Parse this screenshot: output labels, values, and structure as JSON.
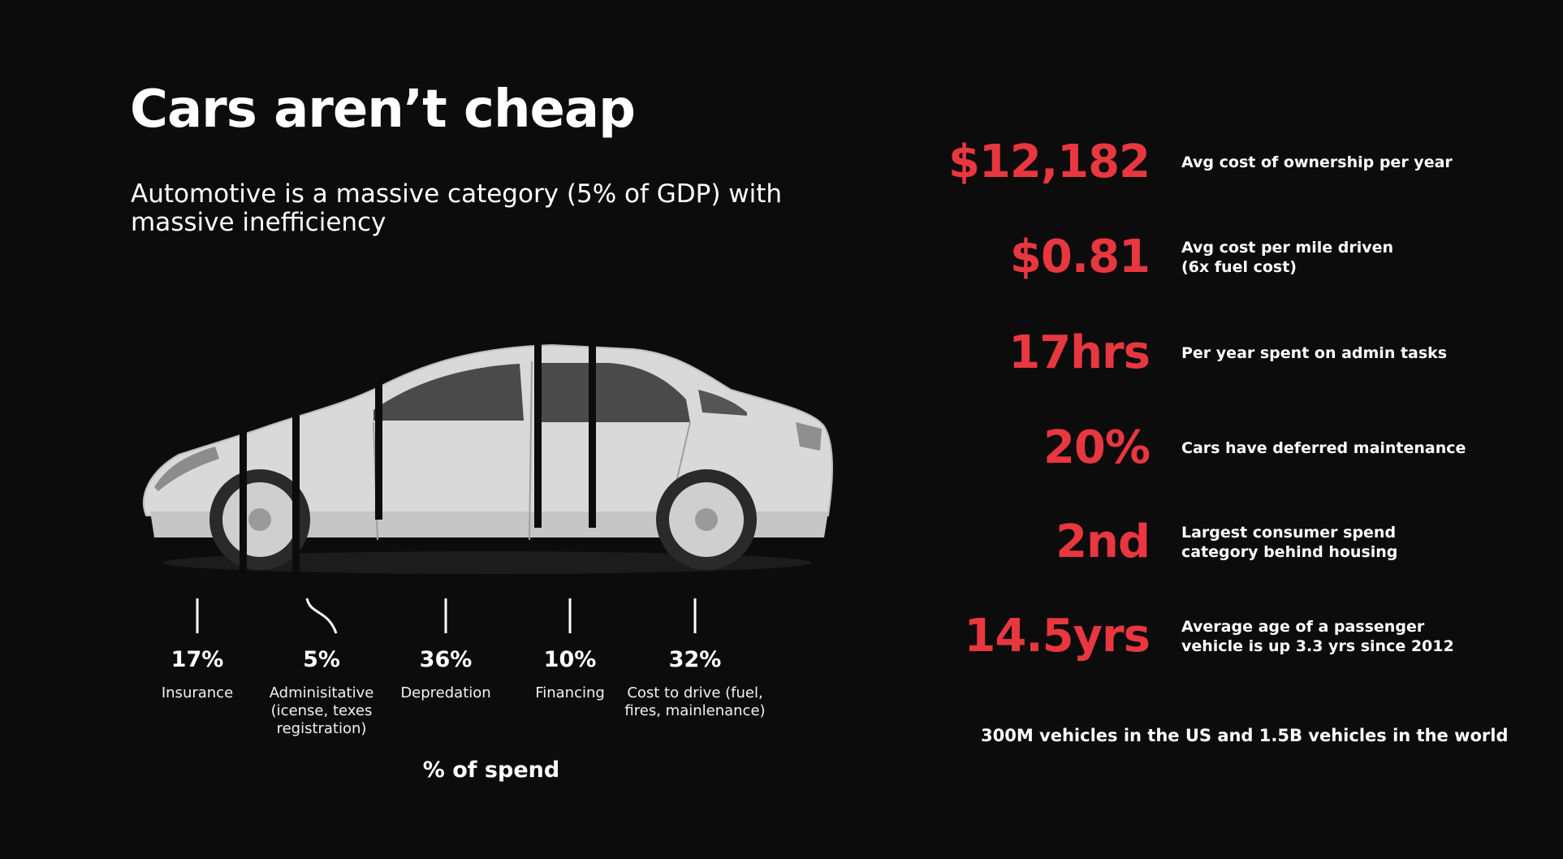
{
  "slide": {
    "title": "Cars aren’t cheap",
    "subtitle": "Automotive is a massive category (5% of GDP) with massive inefficiency"
  },
  "spend": {
    "caption": "% of spend",
    "segments": [
      {
        "pct": "17%",
        "label": "Insurance"
      },
      {
        "pct": "5%",
        "label": "Adminisitative (icense, texes registration)"
      },
      {
        "pct": "36%",
        "label": "Depredation"
      },
      {
        "pct": "10%",
        "label": "Financing"
      },
      {
        "pct": "32%",
        "label": "Cost to drive (fuel, fires, mainlenance)"
      }
    ]
  },
  "stats": [
    {
      "value": "$12,182",
      "desc": "Avg cost of ownership per year"
    },
    {
      "value": "$0.81",
      "desc": "Avg cost per mile driven\n(6x fuel cost)"
    },
    {
      "value": "17hrs",
      "desc": "Per year spent on admin tasks"
    },
    {
      "value": "20%",
      "desc": "Cars have deferred maintenance"
    },
    {
      "value": "2nd",
      "desc": "Largest consumer spend\ncategory behind housing"
    },
    {
      "value": "14.5yrs",
      "desc": "Average age of a passenger\nvehicle is up 3.3 yrs since 2012"
    }
  ],
  "footnote": "300M vehicles in the US and 1.5B vehicles in the world",
  "colors": {
    "background": "#0c0c0c",
    "accent": "#e8373f",
    "text": "#ffffff",
    "car_body": "#d9d9d9"
  },
  "icons": {
    "car_image": "sedan-car-illustration",
    "ticks": "connector-line-icon"
  }
}
